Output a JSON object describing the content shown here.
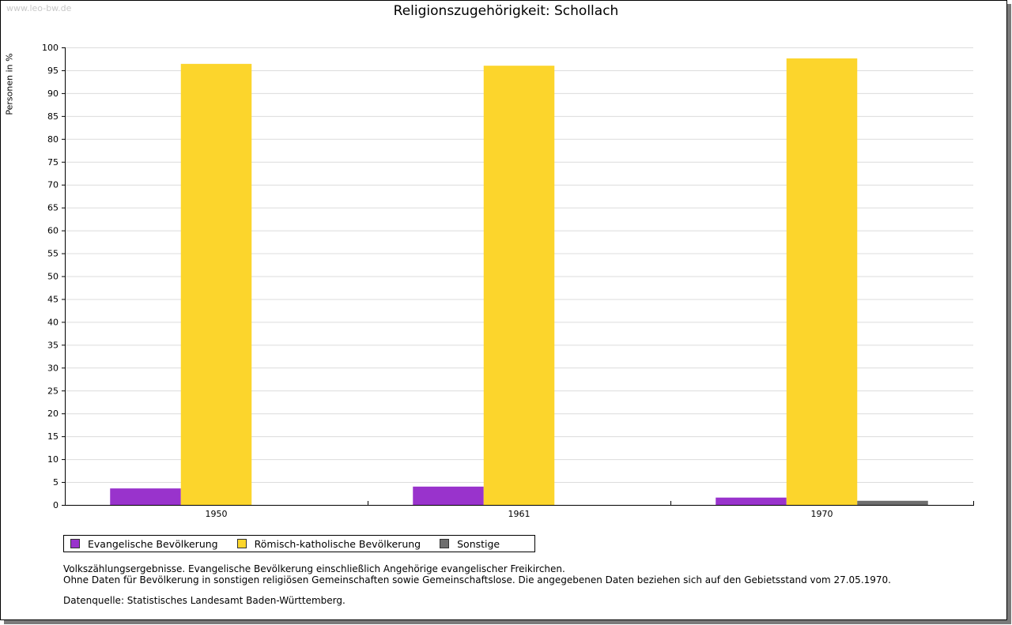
{
  "watermark": "www.leo-bw.de",
  "chart_data": {
    "type": "bar",
    "title": "Religionszugehörigkeit: Schollach",
    "ylabel": "Personen in %",
    "xlabel": "",
    "ylim": [
      0,
      100
    ],
    "yticks": [
      0,
      5,
      10,
      15,
      20,
      25,
      30,
      35,
      40,
      45,
      50,
      55,
      60,
      65,
      70,
      75,
      80,
      85,
      90,
      95,
      100
    ],
    "categories": [
      "1950",
      "1961",
      "1970"
    ],
    "series": [
      {
        "name": "Evangelische Bevölkerung",
        "color": "#9933cc",
        "values": [
          3.6,
          4.0,
          1.6
        ]
      },
      {
        "name": "Römisch-katholische Bevölkerung",
        "color": "#fcd52c",
        "values": [
          96.4,
          96.0,
          97.6
        ]
      },
      {
        "name": "Sonstige",
        "color": "#6e6e6e",
        "values": [
          null,
          null,
          0.9
        ]
      }
    ],
    "grid": true,
    "legend_position": "bottom-left"
  },
  "notes": [
    "Volkszählungsergebnisse. Evangelische Bevölkerung einschließlich Angehörige evangelischer Freikirchen.",
    "Ohne Daten für Bevölkerung in sonstigen religiösen Gemeinschaften sowie Gemeinschaftslose. Die angegebenen Daten beziehen sich auf den Gebietsstand vom 27.05.1970.",
    "Datenquelle: Statistisches Landesamt Baden-Württemberg."
  ]
}
